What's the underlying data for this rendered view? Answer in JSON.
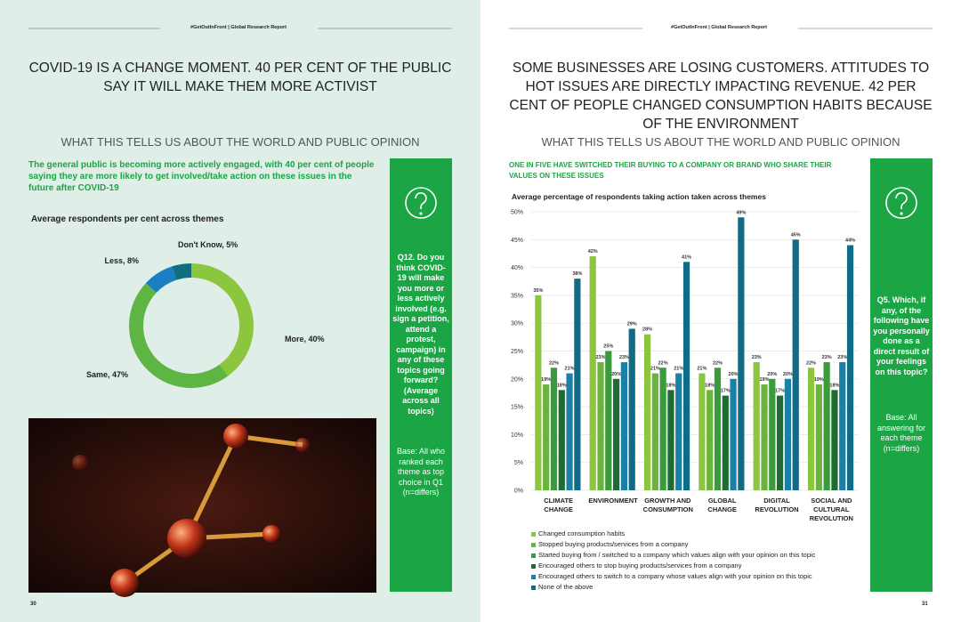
{
  "left": {
    "header": "#GetOutInFront | Global Research Report",
    "title": "COVID-19 IS A CHANGE MOMENT. 40 PER CENT OF THE PUBLIC SAY IT WILL MAKE THEM MORE ACTIVIST",
    "subtitle": "WHAT THIS TELLS US ABOUT THE WORLD AND PUBLIC OPINION",
    "lead": "The general public is becoming more actively engaged, with 40 per cent of people saying they are more likely to get involved/take action on these issues in the future after COVID-19",
    "question": "Q12. Do you think COVID-19 will make you more or less actively involved (e.g. sign a petition, attend a protest, campaign) in any of these topics going forward? (Average across all topics)",
    "base": "Base: All who ranked each theme as top choice in Q1 (n=differs)",
    "page_number": "30"
  },
  "right": {
    "header": "#GetOutInFront | Global Research Report",
    "title": "SOME BUSINESSES ARE LOSING CUSTOMERS. ATTITUDES TO HOT ISSUES ARE DIRECTLY IMPACTING REVENUE. 42 PER CENT OF PEOPLE CHANGED CONSUMPTION HABITS BECAUSE OF THE ENVIRONMENT",
    "subtitle": "WHAT THIS TELLS US ABOUT THE WORLD AND PUBLIC OPINION",
    "lead": "ONE IN FIVE HAVE SWITCHED THEIR BUYING TO A COMPANY OR BRAND WHO SHARE THEIR VALUES ON THESE ISSUES",
    "question": "Q5. Which, if any, of the following have you personally done as a direct result of your feelings on this topic?",
    "base": "Base: All answering for each theme (n=differs)",
    "page_number": "31"
  },
  "chart_data": [
    {
      "type": "donut",
      "title": "Average respondents per cent across themes",
      "categories": [
        "More",
        "Same",
        "Less",
        "Don't Know"
      ],
      "values": [
        40,
        47,
        8,
        5
      ],
      "value_labels": [
        "More, 40%",
        "Same, 47%",
        "Less, 8%",
        "Don't Know, 5%"
      ],
      "colors": [
        "#8cc63f",
        "#5fb544",
        "#1a7ec2",
        "#0f6f7f"
      ]
    },
    {
      "type": "bar",
      "title": "Average percentage of respondents taking action taken across themes",
      "categories": [
        "CLIMATE CHANGE",
        "ENVIRONMENT",
        "GROWTH AND CONSUMPTION",
        "GLOBAL CHANGE",
        "DIGITAL REVOLUTION",
        "SOCIAL AND CULTURAL REVOLUTION"
      ],
      "series": [
        {
          "name": "Changed consumption habits",
          "color": "#8cc63f",
          "values": [
            35,
            42,
            28,
            21,
            23,
            22
          ],
          "value_labels": [
            "35%",
            "42%",
            "28%",
            "21%",
            "23%",
            "22%"
          ]
        },
        {
          "name": "Stopped buying products/services from a company",
          "color": "#6ab43e",
          "values": [
            19,
            23,
            21,
            18,
            19,
            19
          ],
          "value_labels": [
            "19%",
            "23%",
            "21%",
            "18%",
            "19%",
            "19%"
          ]
        },
        {
          "name": "Started buying from / switched to a company which values align with your opinion on this topic",
          "color": "#3a9b3c",
          "values": [
            22,
            25,
            22,
            22,
            20,
            23
          ],
          "value_labels": [
            "22%",
            "25%",
            "22%",
            "22%",
            "20%",
            "23%"
          ]
        },
        {
          "name": "Encouraged others to stop buying products/services from a company",
          "color": "#1f6b34",
          "values": [
            18,
            20,
            18,
            17,
            17,
            18
          ],
          "value_labels": [
            "18%",
            "20%",
            "18%",
            "17%",
            "17%",
            "18%"
          ]
        },
        {
          "name": "Encouraged others to switch to a company whose values align with your opinion on this topic",
          "color": "#1b80a8",
          "values": [
            21,
            23,
            21,
            20,
            20,
            23
          ],
          "value_labels": [
            "21%",
            "23%",
            "21%",
            "20%",
            "20%",
            "23%"
          ]
        },
        {
          "name": "None of the above",
          "color": "#0f6b86",
          "values": [
            38,
            29,
            41,
            49,
            45,
            44
          ],
          "value_labels": [
            "38%",
            "29%",
            "41%",
            "49%",
            "45%",
            "44%"
          ]
        }
      ],
      "ylim": [
        0,
        50
      ],
      "yticks": [
        {
          "value": 0,
          "label": "0%"
        },
        {
          "value": 5,
          "label": "5%"
        },
        {
          "value": 10,
          "label": "10%"
        },
        {
          "value": 15,
          "label": "15%"
        },
        {
          "value": 20,
          "label": "20%"
        },
        {
          "value": 25,
          "label": "25%"
        },
        {
          "value": 30,
          "label": "30%"
        },
        {
          "value": 35,
          "label": "35%"
        },
        {
          "value": 40,
          "label": "40%"
        },
        {
          "value": 45,
          "label": "45%"
        },
        {
          "value": 50,
          "label": "50%"
        }
      ],
      "grid": true
    }
  ]
}
